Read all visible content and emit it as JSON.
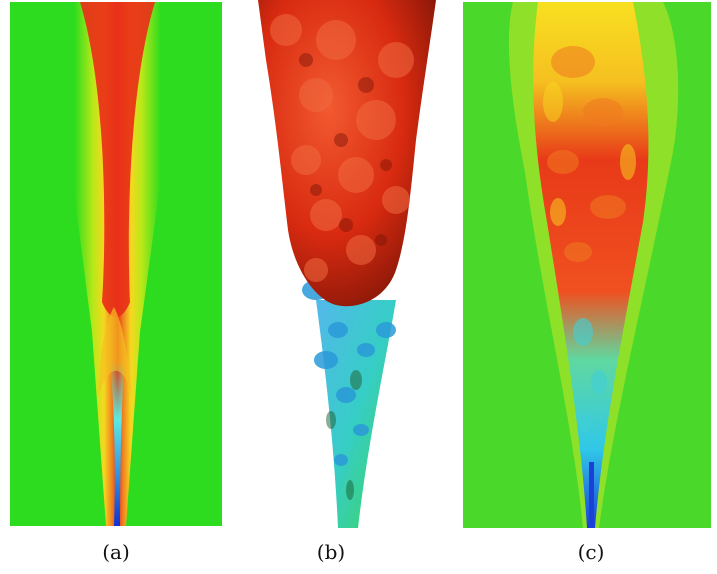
{
  "figure": {
    "panels": [
      {
        "id": "a",
        "caption": "(a)",
        "description_type": "time-averaged-field"
      },
      {
        "id": "b",
        "caption": "(b)",
        "description_type": "isosurface-render"
      },
      {
        "id": "c",
        "caption": "(c)",
        "description_type": "instantaneous-field"
      }
    ],
    "colors": {
      "background_field": "#2ddc1e",
      "core": "#e8301a",
      "mid": "#f8e010",
      "cool": "#30d8e0",
      "jet_nozzle": "#1a40d8"
    }
  }
}
